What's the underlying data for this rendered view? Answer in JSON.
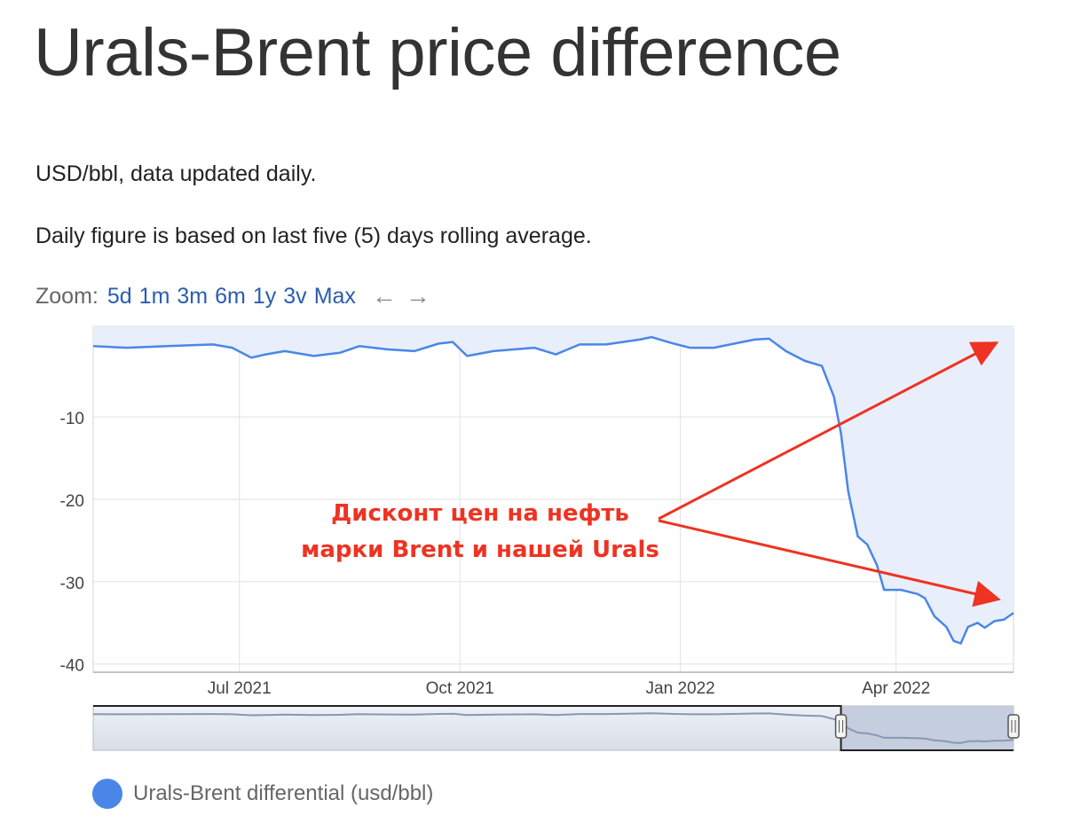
{
  "header": {
    "title": "Urals-Brent price difference",
    "units_note": "USD/bbl, data updated daily.",
    "method_note": "Daily figure is based on last five (5) days rolling average."
  },
  "zoom": {
    "label": "Zoom:",
    "options": [
      "5d",
      "1m",
      "3m",
      "6m",
      "1y",
      "3v",
      "Max"
    ],
    "prev_icon": "arrow-left-icon",
    "next_icon": "arrow-right-icon"
  },
  "annotation": {
    "line1": "Дисконт цен на нефть",
    "line2": "марки Brent и нашей Urals",
    "color": "#ee3322"
  },
  "legend": {
    "label": "Urals-Brent differential (usd/bbl)",
    "color": "#4a86e8"
  },
  "chart_data": {
    "type": "area",
    "title": "",
    "xlabel": "",
    "ylabel": "",
    "ylim": [
      -40,
      0
    ],
    "x_ticks": [
      {
        "date": "2021-07-01",
        "label": "Jul 2021"
      },
      {
        "date": "2021-10-01",
        "label": "Oct 2021"
      },
      {
        "date": "2022-01-01",
        "label": "Jan 2022"
      },
      {
        "date": "2022-04-01",
        "label": "Apr 2022"
      }
    ],
    "y_ticks": [
      -10,
      -20,
      -30,
      -40
    ],
    "xlim": [
      "2021-05-01",
      "2022-05-20"
    ],
    "grid": true,
    "legend_position": "bottom-left",
    "series": [
      {
        "name": "Urals-Brent differential (usd/bbl)",
        "color": "#4a86e8",
        "points": [
          [
            "2021-05-01",
            -1.4
          ],
          [
            "2021-05-15",
            -1.6
          ],
          [
            "2021-06-01",
            -1.4
          ],
          [
            "2021-06-20",
            -1.2
          ],
          [
            "2021-06-28",
            -1.6
          ],
          [
            "2021-07-06",
            -2.8
          ],
          [
            "2021-07-12",
            -2.4
          ],
          [
            "2021-07-20",
            -2.0
          ],
          [
            "2021-08-01",
            -2.6
          ],
          [
            "2021-08-12",
            -2.2
          ],
          [
            "2021-08-20",
            -1.4
          ],
          [
            "2021-09-01",
            -1.8
          ],
          [
            "2021-09-12",
            -2.0
          ],
          [
            "2021-09-22",
            -1.1
          ],
          [
            "2021-09-28",
            -0.9
          ],
          [
            "2021-10-04",
            -2.6
          ],
          [
            "2021-10-15",
            -2.0
          ],
          [
            "2021-11-01",
            -1.6
          ],
          [
            "2021-11-10",
            -2.4
          ],
          [
            "2021-11-20",
            -1.2
          ],
          [
            "2021-12-01",
            -1.2
          ],
          [
            "2021-12-15",
            -0.6
          ],
          [
            "2021-12-20",
            -0.3
          ],
          [
            "2021-12-28",
            -1.0
          ],
          [
            "2022-01-05",
            -1.6
          ],
          [
            "2022-01-15",
            -1.6
          ],
          [
            "2022-01-25",
            -1.0
          ],
          [
            "2022-02-01",
            -0.6
          ],
          [
            "2022-02-07",
            -0.5
          ],
          [
            "2022-02-14",
            -2.0
          ],
          [
            "2022-02-22",
            -3.2
          ],
          [
            "2022-03-01",
            -3.8
          ],
          [
            "2022-03-06",
            -7.5
          ],
          [
            "2022-03-09",
            -12.0
          ],
          [
            "2022-03-12",
            -19.0
          ],
          [
            "2022-03-16",
            -24.5
          ],
          [
            "2022-03-20",
            -25.5
          ],
          [
            "2022-03-24",
            -28.0
          ],
          [
            "2022-03-27",
            -31.0
          ],
          [
            "2022-04-03",
            -31.0
          ],
          [
            "2022-04-10",
            -31.5
          ],
          [
            "2022-04-13",
            -32.0
          ],
          [
            "2022-04-17",
            -34.2
          ],
          [
            "2022-04-22",
            -35.5
          ],
          [
            "2022-04-25",
            -37.2
          ],
          [
            "2022-04-28",
            -37.5
          ],
          [
            "2022-05-01",
            -35.5
          ],
          [
            "2022-05-05",
            -35.0
          ],
          [
            "2022-05-08",
            -35.6
          ],
          [
            "2022-05-12",
            -34.8
          ],
          [
            "2022-05-16",
            -34.6
          ],
          [
            "2022-05-20",
            -33.8
          ]
        ]
      }
    ]
  }
}
